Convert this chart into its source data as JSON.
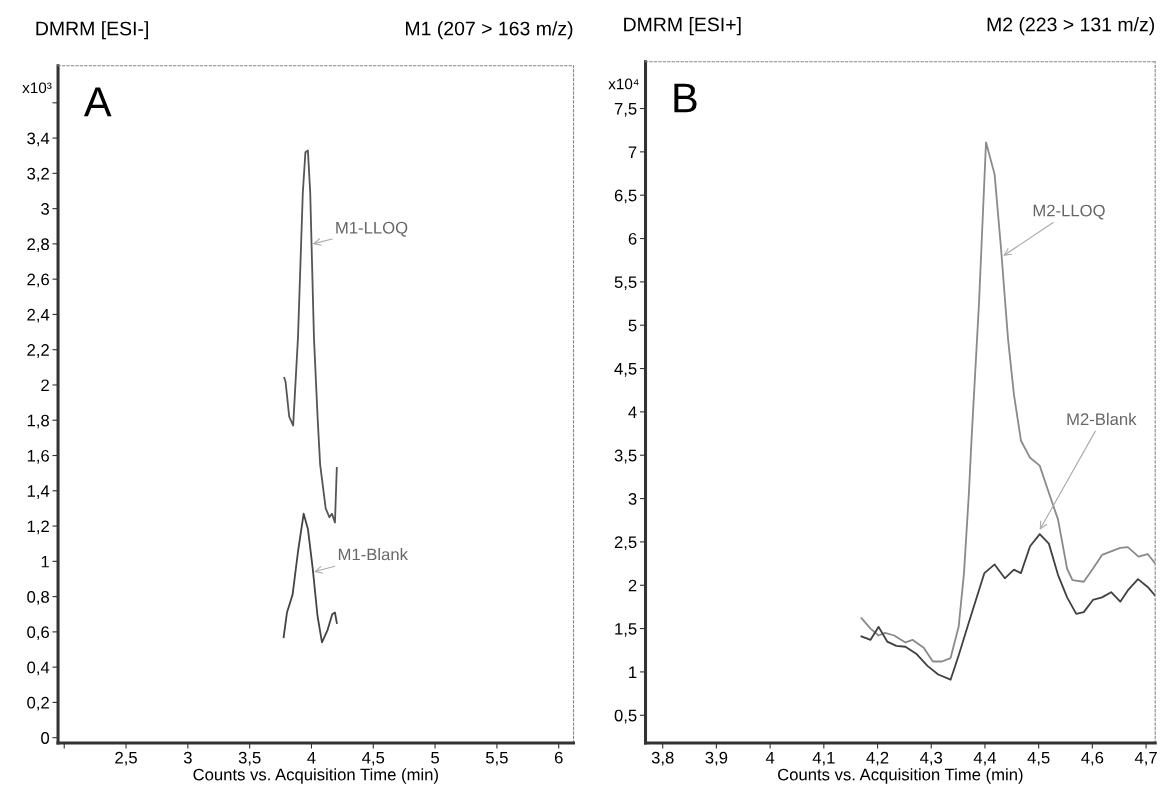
{
  "chart_data": [
    {
      "type": "line",
      "title": "DMRM [ESI-]",
      "subtitle": "M1 (207 > 163 m/z)",
      "xlabel": "Counts vs. Acquisition Time (min)",
      "ylabel": "x10³",
      "annotations": [
        "A",
        {
          "text": "M1-LLOQ",
          "x": 4.01,
          "y": 2.8
        },
        {
          "text": "M1-Blank",
          "x": 4.02,
          "y": 0.94
        }
      ],
      "xlim": [
        1.95,
        6.12
      ],
      "ylim": [
        -0.03,
        3.81
      ],
      "xticks": [
        {
          "value": 2,
          "label": null
        },
        {
          "value": 2.5,
          "label": "2,5"
        },
        3,
        {
          "value": 3.5,
          "label": "3,5"
        },
        4,
        {
          "value": 4.5,
          "label": "4,5"
        },
        5,
        {
          "value": 5.5,
          "label": "5,5"
        },
        6
      ],
      "yticks": [
        0,
        {
          "value": 0.2,
          "label": "0,2"
        },
        {
          "value": 0.4,
          "label": "0,4"
        },
        {
          "value": 0.6,
          "label": "0,6"
        },
        {
          "value": 0.8,
          "label": "0,8"
        },
        1,
        {
          "value": 1.2,
          "label": "1,2"
        },
        {
          "value": 1.4,
          "label": "1,4"
        },
        {
          "value": 1.6,
          "label": "1,6"
        },
        {
          "value": 1.8,
          "label": "1,8"
        },
        2,
        {
          "value": 2.2,
          "label": "2,2"
        },
        {
          "value": 2.4,
          "label": "2,4"
        },
        {
          "value": 2.6,
          "label": "2,6"
        },
        {
          "value": 2.8,
          "label": "2,8"
        },
        3,
        {
          "value": 3.2,
          "label": "3,2"
        },
        {
          "value": 3.4,
          "label": "3,4"
        },
        {
          "value": 3.6,
          "label": null
        }
      ],
      "grid": false,
      "legend": false,
      "line_style": "solid",
      "marker": "none",
      "series": [
        {
          "color": "#555555",
          "x": [
            3.78,
            3.79,
            3.82,
            3.852,
            3.891,
            3.93,
            3.951,
            3.971,
            3.99,
            4.02,
            4.05,
            4.07,
            4.115,
            4.145,
            4.166,
            4.19,
            4.205
          ],
          "values": [
            2.04,
            2.02,
            1.82,
            1.77,
            2.27,
            3.09,
            3.32,
            3.33,
            3.09,
            2.27,
            1.81,
            1.55,
            1.3,
            1.25,
            1.27,
            1.22,
            1.53
          ]
        },
        {
          "color": "#444444",
          "x": [
            3.775,
            3.802,
            3.847,
            3.892,
            3.937,
            3.972,
            4.01,
            4.049,
            4.085,
            4.13,
            4.168,
            4.19,
            4.205
          ],
          "values": [
            0.57,
            0.71,
            0.81,
            1.06,
            1.27,
            1.18,
            0.96,
            0.69,
            0.54,
            0.61,
            0.7,
            0.71,
            0.65
          ]
        }
      ]
    },
    {
      "type": "line",
      "title": "DMRM [ESI+]",
      "subtitle": "M2 (223 > 131 m/z)",
      "xlabel": "Counts vs. Acquisition Time (min)",
      "ylabel": "x10⁴",
      "annotations": [
        "B",
        {
          "text": "M2-LLOQ",
          "x": 4.434,
          "y": 5.8
        },
        {
          "text": "M2-Blank",
          "x": 4.502,
          "y": 2.64
        }
      ],
      "xlim": [
        3.768,
        4.717
      ],
      "ylim": [
        0.18,
        8.04
      ],
      "xticks": [
        {
          "value": 3.8,
          "label": "3,8"
        },
        {
          "value": 3.9,
          "label": "3,9"
        },
        4,
        {
          "value": 4.1,
          "label": "4,1"
        },
        {
          "value": 4.2,
          "label": "4,2"
        },
        {
          "value": 4.3,
          "label": "4,3"
        },
        {
          "value": 4.4,
          "label": "4,4"
        },
        {
          "value": 4.5,
          "label": "4,5"
        },
        {
          "value": 4.6,
          "label": "4,6"
        },
        {
          "value": 4.7,
          "label": "4,7"
        }
      ],
      "yticks": [
        {
          "value": 0.5,
          "label": "0,5"
        },
        1,
        {
          "value": 1.5,
          "label": "1,5"
        },
        2,
        {
          "value": 2.5,
          "label": "2,5"
        },
        3,
        {
          "value": 3.5,
          "label": "3,5"
        },
        4,
        {
          "value": 4.5,
          "label": "4,5"
        },
        5,
        {
          "value": 5.5,
          "label": "5,5"
        },
        6,
        {
          "value": 6.5,
          "label": "6,5"
        },
        7,
        {
          "value": 7.5,
          "label": "7,5"
        }
      ],
      "grid": false,
      "legend": false,
      "line_style": "solid",
      "marker": "none",
      "series": [
        {
          "color": "#8a8a8a",
          "x": [
            4.17,
            4.187,
            4.202,
            4.214,
            4.231,
            4.252,
            4.265,
            4.286,
            4.303,
            4.32,
            4.336,
            4.351,
            4.361,
            4.37,
            4.375,
            4.389,
            4.402,
            4.418,
            4.43,
            4.443,
            4.454,
            4.467,
            4.484,
            4.502,
            4.515,
            4.536,
            4.553,
            4.563,
            4.584,
            4.601,
            4.618,
            4.635,
            4.652,
            4.666,
            4.686,
            4.703,
            4.717
          ],
          "values": [
            1.62,
            1.5,
            1.42,
            1.45,
            1.42,
            1.34,
            1.37,
            1.28,
            1.12,
            1.12,
            1.16,
            1.52,
            2.14,
            3.05,
            3.68,
            5.26,
            7.11,
            6.74,
            5.88,
            4.84,
            4.2,
            3.67,
            3.47,
            3.38,
            3.14,
            2.76,
            2.19,
            2.06,
            2.04,
            2.19,
            2.35,
            2.39,
            2.43,
            2.44,
            2.33,
            2.36,
            2.25
          ]
        },
        {
          "color": "#404040",
          "x": [
            4.17,
            4.187,
            4.202,
            4.218,
            4.235,
            4.252,
            4.272,
            4.293,
            4.313,
            4.336,
            4.351,
            4.372,
            4.399,
            4.418,
            4.437,
            4.454,
            4.467,
            4.484,
            4.502,
            4.519,
            4.536,
            4.553,
            4.57,
            4.584,
            4.601,
            4.618,
            4.635,
            4.652,
            4.666,
            4.685,
            4.703,
            4.717
          ],
          "values": [
            1.41,
            1.37,
            1.52,
            1.35,
            1.3,
            1.29,
            1.21,
            1.07,
            0.97,
            0.91,
            1.19,
            1.61,
            2.14,
            2.24,
            2.08,
            2.18,
            2.14,
            2.45,
            2.59,
            2.48,
            2.12,
            1.86,
            1.67,
            1.69,
            1.83,
            1.86,
            1.92,
            1.81,
            1.94,
            2.07,
            1.98,
            1.88
          ]
        }
      ]
    }
  ]
}
